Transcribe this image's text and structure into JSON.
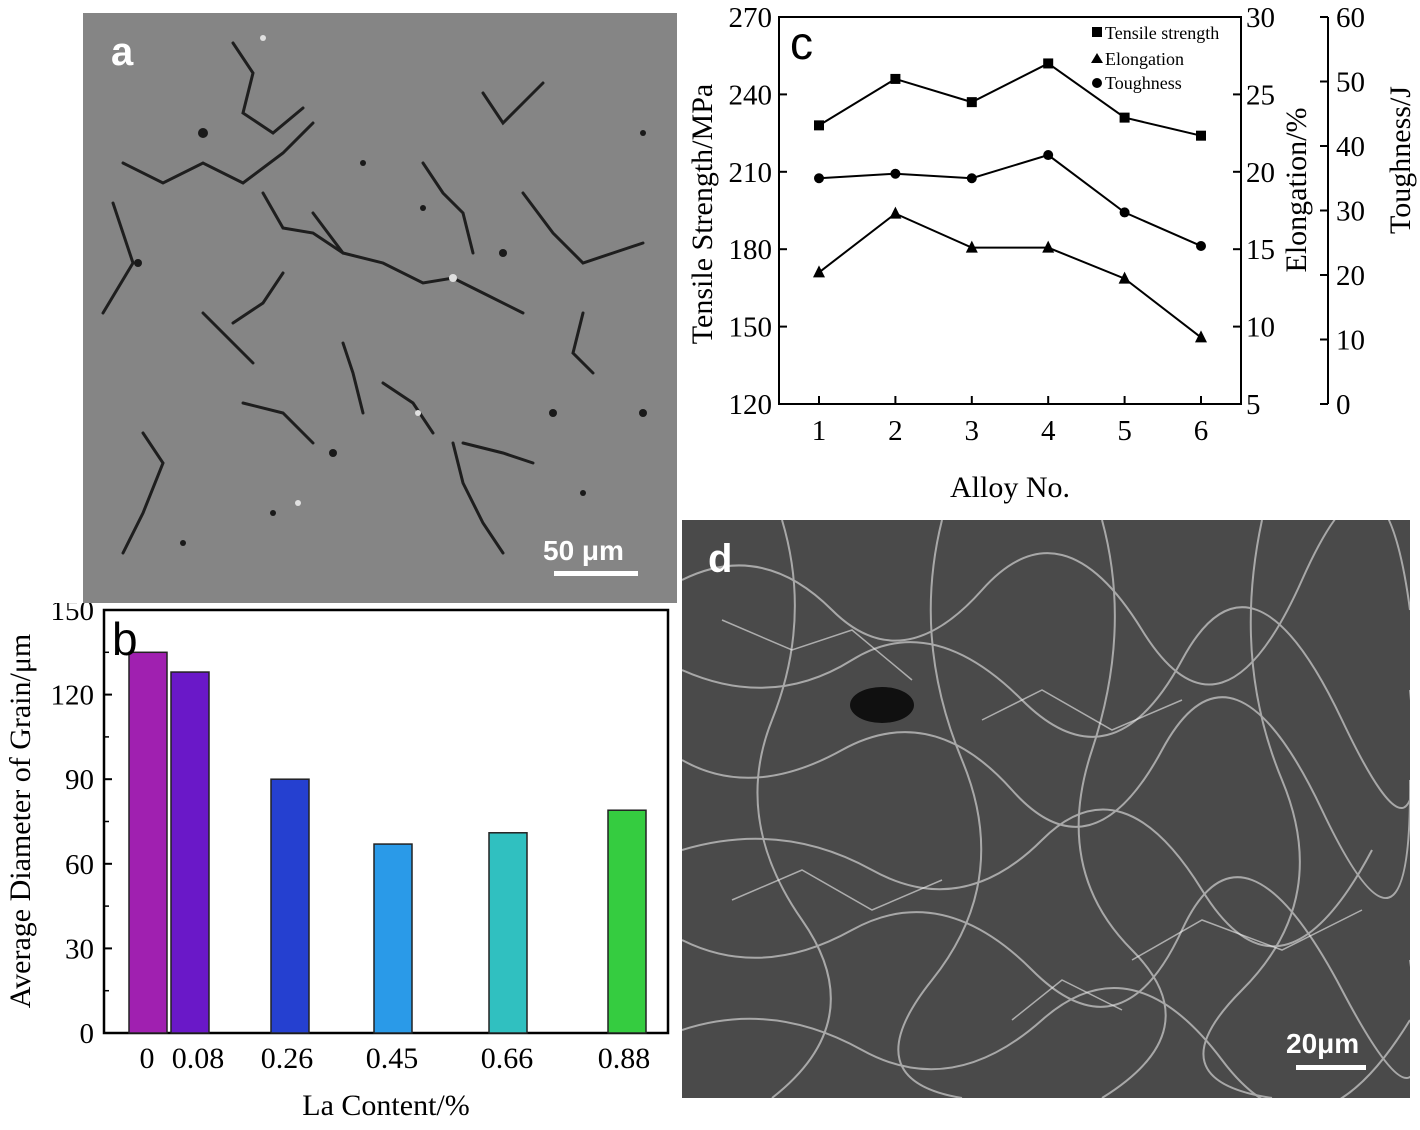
{
  "panel_a": {
    "letter": "a",
    "scale_bar_label": "50 μm",
    "background": "#858585"
  },
  "panel_d": {
    "letter": "d",
    "scale_bar_label": "20μm",
    "background": "#4a4a4a"
  },
  "chart_data": [
    {
      "panel": "b",
      "type": "bar",
      "title": "",
      "xlabel": "La Content/%",
      "ylabel": "Average Diameter of Grain/μm",
      "ylim": [
        0,
        150
      ],
      "yticks": [
        0,
        30,
        60,
        90,
        120,
        150
      ],
      "categories": [
        "0",
        "0.08",
        "0.26",
        "0.45",
        "0.66",
        "0.88"
      ],
      "values": [
        135,
        128,
        90,
        67,
        71,
        79
      ],
      "colors": [
        "#a020b0",
        "#6a18c8",
        "#2540d0",
        "#2a9ae8",
        "#30c0c0",
        "#35cc40"
      ],
      "grid": false,
      "legend": false
    },
    {
      "panel": "c",
      "type": "line",
      "title": "",
      "xlabel": "Alloy No.",
      "x": [
        1,
        2,
        3,
        4,
        5,
        6
      ],
      "axes": [
        {
          "label": "Tensile Strength/MPa",
          "side": "left",
          "ylim": [
            120,
            270
          ],
          "ticks": [
            120,
            150,
            180,
            210,
            240,
            270
          ]
        },
        {
          "label": "Elongation/%",
          "side": "right",
          "ylim": [
            5,
            30
          ],
          "ticks": [
            5,
            10,
            15,
            20,
            25,
            30
          ]
        },
        {
          "label": "Toughness/J",
          "side": "right-outer",
          "ylim": [
            0,
            60
          ],
          "ticks": [
            0,
            10,
            20,
            30,
            40,
            50,
            60
          ]
        }
      ],
      "series": [
        {
          "name": "Tensile strength",
          "marker": "square",
          "axis": 0,
          "values": [
            228,
            246,
            237,
            252,
            231,
            224
          ]
        },
        {
          "name": "Elongation",
          "marker": "triangle",
          "axis": 1,
          "values": [
            13.5,
            17.3,
            15.1,
            15.1,
            13.1,
            9.3
          ]
        },
        {
          "name": "Toughness",
          "marker": "circle",
          "axis": 2,
          "values": [
            35,
            35.7,
            35,
            38.6,
            29.7,
            24.5
          ]
        }
      ],
      "legend_position": "top-right",
      "grid": false
    }
  ]
}
